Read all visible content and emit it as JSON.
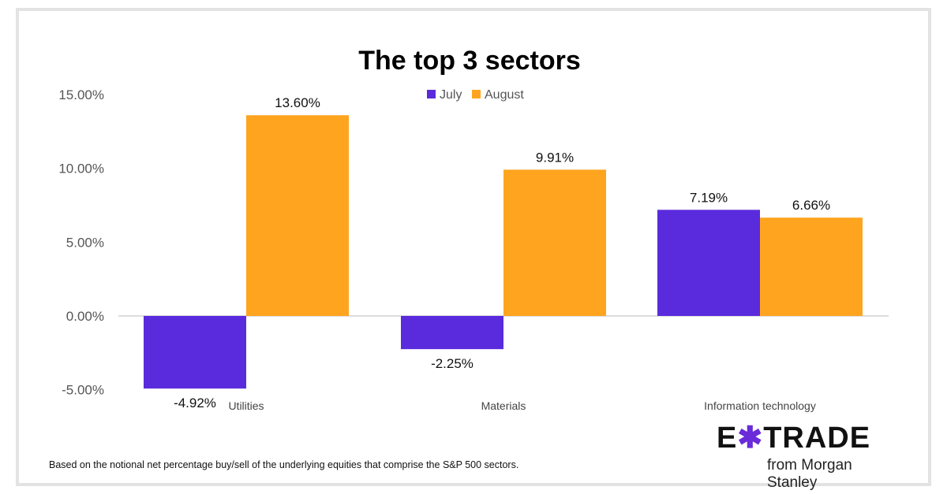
{
  "chart_data": {
    "type": "bar",
    "title": "The top 3 sectors",
    "categories": [
      "Utilities",
      "Materials",
      "Information technology"
    ],
    "series": [
      {
        "name": "July",
        "color": "#5a2bdc",
        "values": [
          -4.92,
          -2.25,
          7.19
        ],
        "labels": [
          "-4.92%",
          "-2.25%",
          "7.19%"
        ]
      },
      {
        "name": "August",
        "color": "#ffa41f",
        "values": [
          13.6,
          9.91,
          6.66
        ],
        "labels": [
          "13.60%",
          "9.91%",
          "6.66%"
        ]
      }
    ],
    "ylim": [
      -5,
      15
    ],
    "yticks": [
      -5,
      0,
      5,
      10,
      15
    ],
    "ytick_labels": [
      "-5.00%",
      "0.00%",
      "5.00%",
      "10.00%",
      "15.00%"
    ],
    "xlabel": "",
    "ylabel": "",
    "grid": false,
    "legend_position": "top-center"
  },
  "footnote": "Based on the notional net percentage buy/sell of the underlying equities that comprise the S&P 500 sectors.",
  "logo": {
    "brand": "E*TRADE",
    "wordmark": "E✱TRADE",
    "sub": "from Morgan Stanley",
    "colors": {
      "purple": "#6a2bd9",
      "blue": "#1ea0e0"
    }
  }
}
